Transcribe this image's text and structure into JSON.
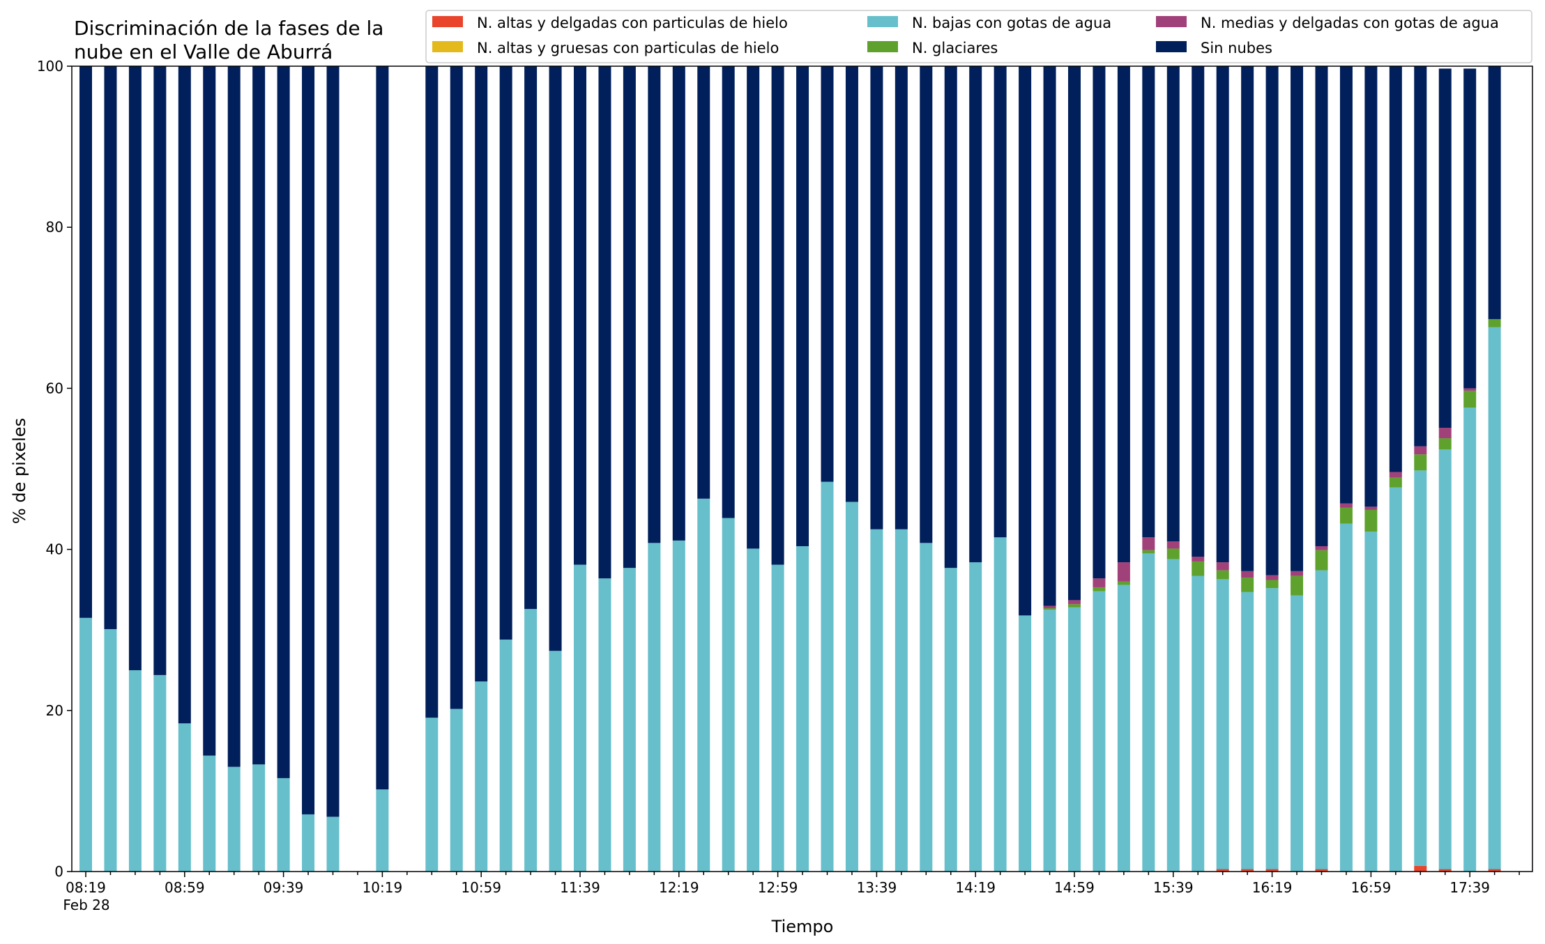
{
  "chart_data": {
    "type": "bar",
    "stacked": true,
    "title_lines": [
      "Discriminación de la fases de la",
      "nube en el Valle de Aburrá"
    ],
    "xlabel": "Tiempo",
    "ylabel": "% de pixeles",
    "ylim": [
      0,
      100
    ],
    "yticks": [
      "0",
      "20",
      "40",
      "60",
      "80",
      "100"
    ],
    "grid": false,
    "legend_position": "top-right",
    "x_start": "08:19",
    "x_step_minutes": 10,
    "x_date_label": "Feb 28",
    "xtick_labels": [
      "08:19",
      "08:59",
      "09:39",
      "10:19",
      "10:59",
      "11:39",
      "12:19",
      "12:59",
      "13:39",
      "14:19",
      "14:59",
      "15:39",
      "16:19",
      "16:59",
      "17:39"
    ],
    "series": [
      {
        "name": "N. altas y delgadas con particulas de hielo",
        "color": "#e8452c",
        "values": [
          0,
          0,
          0,
          0,
          0,
          0,
          0,
          0,
          0,
          0,
          0,
          null,
          0,
          null,
          0,
          0,
          0,
          0,
          0,
          0,
          0,
          0,
          0,
          0,
          0,
          0,
          0,
          0,
          0,
          0,
          0,
          0,
          0,
          0,
          0,
          0,
          0,
          0,
          0,
          0,
          0,
          0,
          0,
          0,
          0,
          0,
          0.3,
          0.3,
          0.3,
          0,
          0.3,
          0,
          0,
          0,
          0.7,
          0.3,
          0,
          0.3
        ]
      },
      {
        "name": "N. altas y gruesas con particulas de hielo",
        "color": "#e4b91c",
        "values": [
          0,
          0,
          0,
          0,
          0,
          0,
          0,
          0,
          0,
          0,
          0,
          null,
          0,
          null,
          0,
          0,
          0,
          0,
          0,
          0,
          0,
          0,
          0,
          0,
          0,
          0,
          0,
          0,
          0,
          0,
          0,
          0,
          0,
          0,
          0,
          0,
          0,
          0,
          0,
          0,
          0,
          0,
          0,
          0,
          0,
          0,
          0,
          0,
          0,
          0,
          0,
          0,
          0,
          0,
          0,
          0,
          0,
          0
        ]
      },
      {
        "name": "N. bajas con gotas de agua",
        "color": "#66bfcb",
        "values": [
          31.5,
          30.1,
          25,
          24.4,
          18.4,
          14.4,
          13,
          13.3,
          11.6,
          7.1,
          6.8,
          null,
          10.2,
          null,
          19.1,
          20.2,
          23.6,
          28.8,
          32.6,
          27.4,
          38.1,
          36.4,
          37.7,
          40.8,
          41.1,
          46.3,
          43.9,
          40.1,
          38.1,
          40.4,
          48.4,
          45.9,
          42.5,
          42.5,
          40.8,
          37.7,
          38.4,
          41.5,
          31.8,
          32.5,
          32.8,
          34.8,
          35.6,
          39.5,
          38.8,
          36.7,
          36,
          34.4,
          34.9,
          34.3,
          37.1,
          43.2,
          42.2,
          47.7,
          49.1,
          52.1,
          57.6,
          67.3
        ]
      },
      {
        "name": "N. glaciares",
        "color": "#5ea12d",
        "values": [
          0,
          0,
          0,
          0,
          0,
          0,
          0,
          0,
          0,
          0,
          0,
          null,
          0,
          null,
          0,
          0,
          0,
          0,
          0,
          0,
          0,
          0,
          0,
          0,
          0,
          0,
          0,
          0,
          0,
          0,
          0,
          0,
          0,
          0,
          0,
          0,
          0,
          0,
          0,
          0.2,
          0.4,
          0.5,
          0.4,
          0.4,
          1.3,
          1.8,
          1.1,
          1.8,
          1,
          2.4,
          2.5,
          2,
          2.7,
          1.2,
          2,
          1.4,
          2.1,
          1
        ]
      },
      {
        "name": "N. medias y delgadas con gotas de agua",
        "color": "#a1417a",
        "values": [
          0,
          0,
          0,
          0,
          0,
          0,
          0,
          0,
          0,
          0,
          0,
          null,
          0,
          null,
          0,
          0,
          0,
          0,
          0,
          0,
          0,
          0,
          0,
          0,
          0,
          0,
          0,
          0,
          0,
          0,
          0,
          0,
          0,
          0,
          0,
          0,
          0,
          0,
          0,
          0.3,
          0.5,
          1.1,
          2.4,
          1.6,
          0.9,
          0.6,
          1,
          0.8,
          0.6,
          0.6,
          0.5,
          0.5,
          0.4,
          0.7,
          1,
          1.3,
          0.3,
          0
        ]
      },
      {
        "name": "Sin nubes",
        "color": "#001f5b",
        "values": [
          68.5,
          69.9,
          75,
          75.6,
          81.6,
          85.6,
          87,
          86.7,
          88.4,
          92.9,
          93.2,
          null,
          89.8,
          null,
          80.9,
          79.8,
          76.4,
          71.2,
          67.4,
          72.6,
          61.9,
          63.6,
          62.3,
          59.2,
          58.9,
          53.7,
          56.1,
          59.9,
          61.9,
          59.6,
          51.6,
          54.1,
          57.5,
          57.5,
          59.2,
          62.3,
          61.6,
          58.5,
          68.2,
          67,
          66.3,
          63.6,
          61.6,
          58.5,
          59,
          60.9,
          61.6,
          62.7,
          63.2,
          62.7,
          59.6,
          54.3,
          54.7,
          50.4,
          47.2,
          44.6,
          39.7,
          31.4
        ]
      }
    ]
  }
}
